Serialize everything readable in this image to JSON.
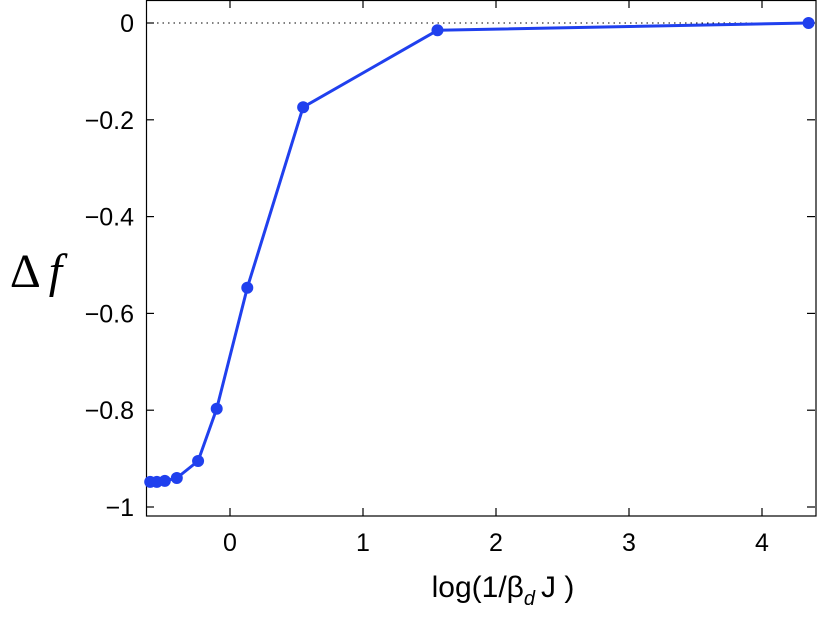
{
  "chart_data": {
    "type": "line",
    "xlabel_parts": {
      "prefix": "log(1/β",
      "subscript": "d",
      "suffix": "J )"
    },
    "ylabel_parts": {
      "delta": "Δ",
      "var": "f"
    },
    "xlim": [
      -0.62,
      4.4
    ],
    "ylim": [
      -1.0,
      0.0
    ],
    "xticks": [
      0,
      1,
      2,
      3,
      4
    ],
    "xtick_labels": [
      "0",
      "1",
      "2",
      "3",
      "4"
    ],
    "yticks": [
      0,
      -0.2,
      -0.4,
      -0.6,
      -0.8,
      -1
    ],
    "ytick_labels": [
      "0",
      "−0.2",
      "−0.4",
      "−0.6",
      "−0.8",
      "−1"
    ],
    "reference_line": {
      "y": 0,
      "style": "dotted"
    },
    "grid": false,
    "series": [
      {
        "color": "#2040ee",
        "marker": "circle",
        "x": [
          -0.6,
          -0.55,
          -0.49,
          -0.4,
          -0.24,
          -0.1,
          0.13,
          0.55,
          1.56,
          4.35
        ],
        "y": [
          -0.948,
          -0.948,
          -0.946,
          -0.94,
          -0.905,
          -0.797,
          -0.547,
          -0.174,
          -0.015,
          0.0
        ]
      }
    ]
  }
}
